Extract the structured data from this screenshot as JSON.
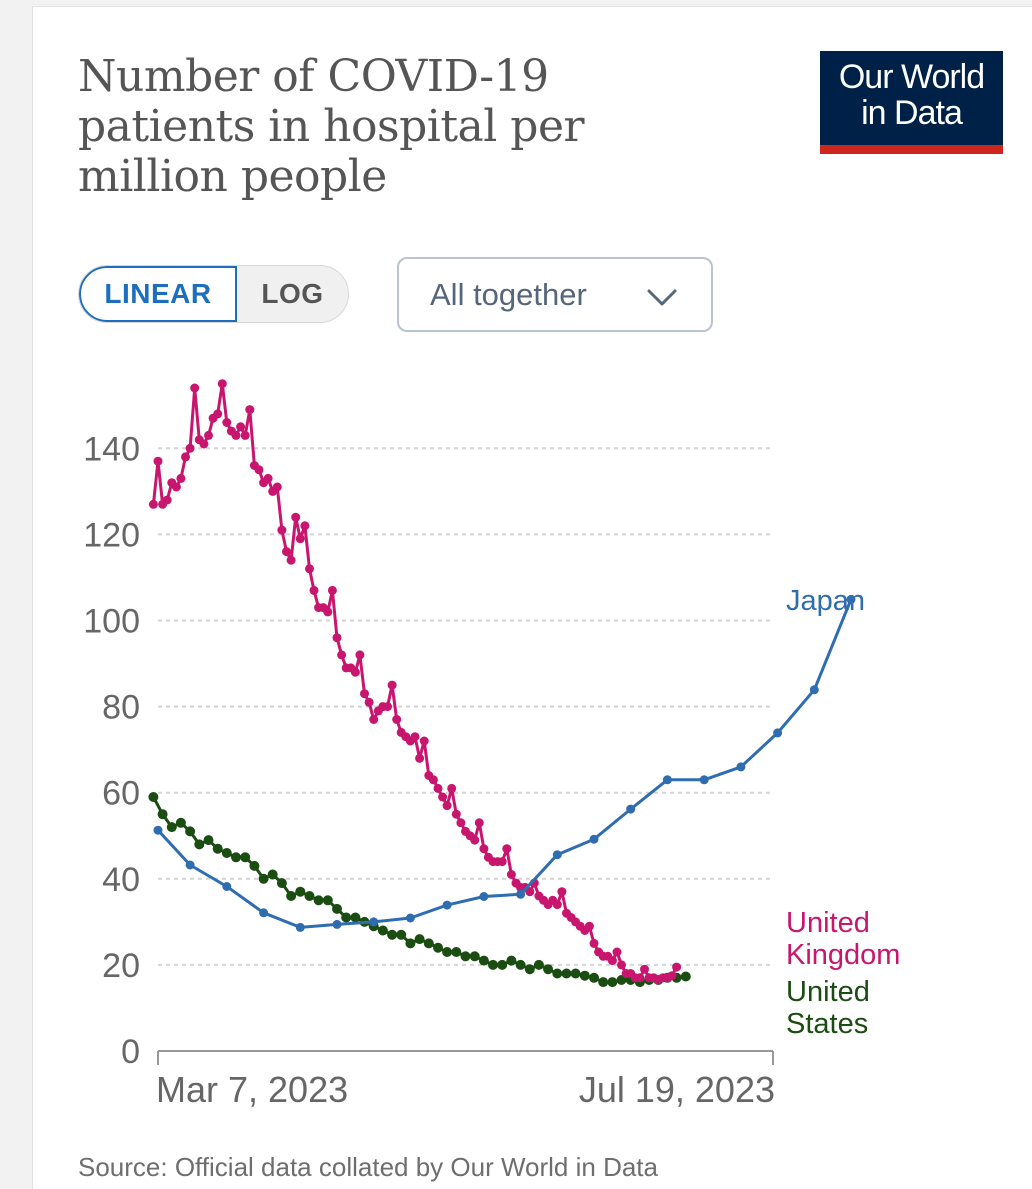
{
  "title": "Number of COVID-19 patients in hospital per million people",
  "logo": {
    "line1": "Our World",
    "line2": "in Data"
  },
  "controls": {
    "scale_options": [
      "LINEAR",
      "LOG"
    ],
    "selected_scale": "LINEAR",
    "facet_select": "All together"
  },
  "source": "Source: Official data collated by Our World in Data",
  "colors": {
    "japan": "#2f6db0",
    "united_kingdom": "#c8156e",
    "united_states": "#1b4d12",
    "accent": "#1d6fbd"
  },
  "chart_data": {
    "type": "line",
    "x_start": "2023-03-07",
    "x_end": "2023-07-19",
    "x_tick_labels": [
      "Mar 7, 2023",
      "Jul 19, 2023"
    ],
    "y_ticks": [
      0,
      20,
      40,
      60,
      80,
      100,
      120,
      140
    ],
    "ylim": [
      0,
      160
    ],
    "grid": "horizontal dashed",
    "legend": "labels at line ends",
    "series": [
      {
        "name": "Japan",
        "label_lines": [
          "Japan"
        ],
        "color": "#2f6db0",
        "points": [
          [
            "2023-03-07",
            51.3
          ],
          [
            "2023-03-14",
            43.2
          ],
          [
            "2023-03-22",
            38.2
          ],
          [
            "2023-03-30",
            32.1
          ],
          [
            "2023-04-07",
            28.7
          ],
          [
            "2023-04-15",
            29.4
          ],
          [
            "2023-04-23",
            30.0
          ],
          [
            "2023-05-01",
            30.9
          ],
          [
            "2023-05-09",
            33.9
          ],
          [
            "2023-05-17",
            35.9
          ],
          [
            "2023-05-25",
            36.4
          ],
          [
            "2023-06-02",
            45.6
          ],
          [
            "2023-06-10",
            49.2
          ],
          [
            "2023-06-18",
            56.2
          ],
          [
            "2023-06-26",
            63.0
          ],
          [
            "2023-07-04",
            63.0
          ],
          [
            "2023-07-12",
            66.0
          ],
          [
            "2023-07-20",
            73.9
          ],
          [
            "2023-07-28",
            83.9
          ],
          [
            "2023-08-05",
            104.9
          ]
        ]
      },
      {
        "name": "United Kingdom",
        "label_lines": [
          "United",
          "Kingdom"
        ],
        "color": "#c8156e",
        "points": [
          [
            "2023-03-06",
            127
          ],
          [
            "2023-03-07",
            137
          ],
          [
            "2023-03-08",
            127
          ],
          [
            "2023-03-09",
            128
          ],
          [
            "2023-03-10",
            132
          ],
          [
            "2023-03-11",
            131
          ],
          [
            "2023-03-12",
            133
          ],
          [
            "2023-03-13",
            138
          ],
          [
            "2023-03-14",
            140
          ],
          [
            "2023-03-15",
            154
          ],
          [
            "2023-03-16",
            142
          ],
          [
            "2023-03-17",
            141
          ],
          [
            "2023-03-18",
            143
          ],
          [
            "2023-03-19",
            147
          ],
          [
            "2023-03-20",
            148
          ],
          [
            "2023-03-21",
            155
          ],
          [
            "2023-03-22",
            146
          ],
          [
            "2023-03-23",
            144
          ],
          [
            "2023-03-24",
            143
          ],
          [
            "2023-03-25",
            145
          ],
          [
            "2023-03-26",
            143
          ],
          [
            "2023-03-27",
            149
          ],
          [
            "2023-03-28",
            136
          ],
          [
            "2023-03-29",
            135
          ],
          [
            "2023-03-30",
            132
          ],
          [
            "2023-03-31",
            133
          ],
          [
            "2023-04-01",
            130
          ],
          [
            "2023-04-02",
            131
          ],
          [
            "2023-04-03",
            121
          ],
          [
            "2023-04-04",
            116
          ],
          [
            "2023-04-05",
            114
          ],
          [
            "2023-04-06",
            124
          ],
          [
            "2023-04-07",
            119
          ],
          [
            "2023-04-08",
            122
          ],
          [
            "2023-04-09",
            112
          ],
          [
            "2023-04-10",
            107
          ],
          [
            "2023-04-11",
            103
          ],
          [
            "2023-04-12",
            103
          ],
          [
            "2023-04-13",
            102
          ],
          [
            "2023-04-14",
            107
          ],
          [
            "2023-04-15",
            96
          ],
          [
            "2023-04-16",
            92
          ],
          [
            "2023-04-17",
            89
          ],
          [
            "2023-04-18",
            89
          ],
          [
            "2023-04-19",
            88
          ],
          [
            "2023-04-20",
            92
          ],
          [
            "2023-04-21",
            83
          ],
          [
            "2023-04-22",
            81
          ],
          [
            "2023-04-23",
            77
          ],
          [
            "2023-04-24",
            79
          ],
          [
            "2023-04-25",
            80
          ],
          [
            "2023-04-26",
            80
          ],
          [
            "2023-04-27",
            85
          ],
          [
            "2023-04-28",
            77
          ],
          [
            "2023-04-29",
            74
          ],
          [
            "2023-04-30",
            73
          ],
          [
            "2023-05-01",
            72
          ],
          [
            "2023-05-02",
            73
          ],
          [
            "2023-05-03",
            68
          ],
          [
            "2023-05-04",
            72
          ],
          [
            "2023-05-05",
            64
          ],
          [
            "2023-05-06",
            63
          ],
          [
            "2023-05-07",
            61
          ],
          [
            "2023-05-08",
            59
          ],
          [
            "2023-05-09",
            57
          ],
          [
            "2023-05-10",
            61
          ],
          [
            "2023-05-11",
            55
          ],
          [
            "2023-05-12",
            53
          ],
          [
            "2023-05-13",
            51
          ],
          [
            "2023-05-14",
            50
          ],
          [
            "2023-05-15",
            49
          ],
          [
            "2023-05-16",
            53
          ],
          [
            "2023-05-17",
            47
          ],
          [
            "2023-05-18",
            45
          ],
          [
            "2023-05-19",
            44
          ],
          [
            "2023-05-20",
            44
          ],
          [
            "2023-05-21",
            44
          ],
          [
            "2023-05-22",
            47
          ],
          [
            "2023-05-23",
            41
          ],
          [
            "2023-05-24",
            39
          ],
          [
            "2023-05-25",
            38
          ],
          [
            "2023-05-26",
            38
          ],
          [
            "2023-05-27",
            37
          ],
          [
            "2023-05-28",
            39
          ],
          [
            "2023-05-29",
            36
          ],
          [
            "2023-05-30",
            35
          ],
          [
            "2023-05-31",
            34
          ],
          [
            "2023-06-01",
            35
          ],
          [
            "2023-06-02",
            34
          ],
          [
            "2023-06-03",
            37
          ],
          [
            "2023-06-04",
            32
          ],
          [
            "2023-06-05",
            31
          ],
          [
            "2023-06-06",
            30
          ],
          [
            "2023-06-07",
            29
          ],
          [
            "2023-06-08",
            28
          ],
          [
            "2023-06-09",
            29
          ],
          [
            "2023-06-10",
            25
          ],
          [
            "2023-06-11",
            23
          ],
          [
            "2023-06-12",
            22
          ],
          [
            "2023-06-13",
            22
          ],
          [
            "2023-06-14",
            21
          ],
          [
            "2023-06-15",
            23
          ],
          [
            "2023-06-16",
            20
          ],
          [
            "2023-06-17",
            18
          ],
          [
            "2023-06-18",
            18
          ],
          [
            "2023-06-19",
            17
          ],
          [
            "2023-06-20",
            17
          ],
          [
            "2023-06-21",
            19
          ],
          [
            "2023-06-22",
            17
          ],
          [
            "2023-06-23",
            17
          ],
          [
            "2023-06-24",
            16.5
          ],
          [
            "2023-06-25",
            17
          ],
          [
            "2023-06-26",
            17
          ],
          [
            "2023-06-27",
            17.5
          ],
          [
            "2023-06-28",
            19.5
          ]
        ]
      },
      {
        "name": "United States",
        "label_lines": [
          "United",
          "States"
        ],
        "color": "#1b4d12",
        "points": [
          [
            "2023-03-06",
            59
          ],
          [
            "2023-03-08",
            55
          ],
          [
            "2023-03-10",
            52
          ],
          [
            "2023-03-12",
            53
          ],
          [
            "2023-03-14",
            51
          ],
          [
            "2023-03-16",
            48
          ],
          [
            "2023-03-18",
            49
          ],
          [
            "2023-03-20",
            47
          ],
          [
            "2023-03-22",
            46
          ],
          [
            "2023-03-24",
            45
          ],
          [
            "2023-03-26",
            45
          ],
          [
            "2023-03-28",
            43
          ],
          [
            "2023-03-30",
            40
          ],
          [
            "2023-04-01",
            41
          ],
          [
            "2023-04-03",
            39
          ],
          [
            "2023-04-05",
            36
          ],
          [
            "2023-04-07",
            37
          ],
          [
            "2023-04-09",
            36
          ],
          [
            "2023-04-11",
            35
          ],
          [
            "2023-04-13",
            35
          ],
          [
            "2023-04-15",
            33
          ],
          [
            "2023-04-17",
            31
          ],
          [
            "2023-04-19",
            31
          ],
          [
            "2023-04-21",
            30
          ],
          [
            "2023-04-23",
            29
          ],
          [
            "2023-04-25",
            28
          ],
          [
            "2023-04-27",
            27
          ],
          [
            "2023-04-29",
            27
          ],
          [
            "2023-05-01",
            25
          ],
          [
            "2023-05-03",
            26
          ],
          [
            "2023-05-05",
            25
          ],
          [
            "2023-05-07",
            24
          ],
          [
            "2023-05-09",
            23
          ],
          [
            "2023-05-11",
            23
          ],
          [
            "2023-05-13",
            22
          ],
          [
            "2023-05-15",
            22
          ],
          [
            "2023-05-17",
            21
          ],
          [
            "2023-05-19",
            20
          ],
          [
            "2023-05-21",
            20
          ],
          [
            "2023-05-23",
            21
          ],
          [
            "2023-05-25",
            20
          ],
          [
            "2023-05-27",
            19
          ],
          [
            "2023-05-29",
            20
          ],
          [
            "2023-05-31",
            19
          ],
          [
            "2023-06-02",
            18
          ],
          [
            "2023-06-04",
            18
          ],
          [
            "2023-06-06",
            18
          ],
          [
            "2023-06-08",
            17.5
          ],
          [
            "2023-06-10",
            17
          ],
          [
            "2023-06-12",
            16
          ],
          [
            "2023-06-14",
            16
          ],
          [
            "2023-06-16",
            16.5
          ],
          [
            "2023-06-18",
            16.5
          ],
          [
            "2023-06-20",
            16
          ],
          [
            "2023-06-22",
            16.5
          ],
          [
            "2023-06-24",
            16.5
          ],
          [
            "2023-06-26",
            17
          ],
          [
            "2023-06-28",
            17
          ],
          [
            "2023-06-30",
            17.3
          ]
        ]
      }
    ]
  }
}
